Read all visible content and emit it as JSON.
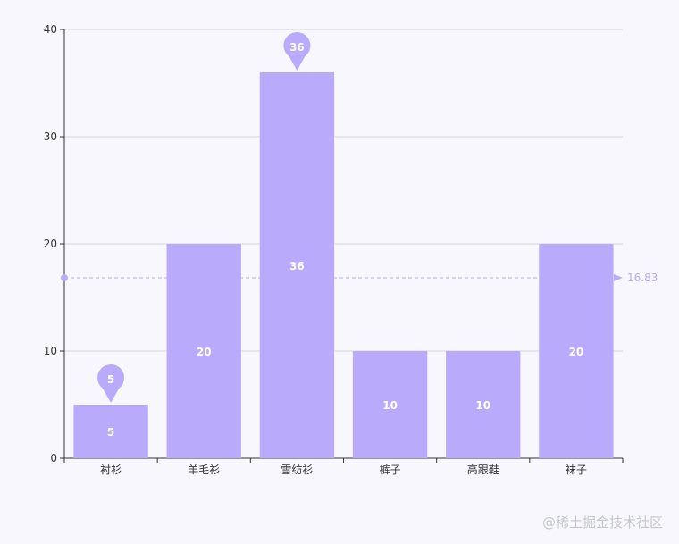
{
  "chart_data": {
    "type": "bar",
    "categories": [
      "衬衫",
      "羊毛衫",
      "雪纺衫",
      "裤子",
      "高跟鞋",
      "袜子"
    ],
    "values": [
      5,
      20,
      36,
      10,
      10,
      20
    ],
    "ylim": [
      0,
      40
    ],
    "yticks": [
      0,
      10,
      20,
      30,
      40
    ],
    "grid": true,
    "bar_labels": [
      "5",
      "20",
      "36",
      "10",
      "10",
      "20"
    ],
    "mark_points": [
      {
        "category": "雪纺衫",
        "value": 36,
        "label": "36"
      },
      {
        "category": "衬衫",
        "value": 5,
        "label": "5"
      }
    ],
    "mark_line": {
      "type": "average",
      "value": 16.83,
      "label": "16.83"
    },
    "colors": {
      "bar": "#b9aafc",
      "marker": "#b9aafc",
      "axis": "#333333",
      "grid": "#cccccc",
      "label": "#ffffff"
    }
  },
  "watermark": "@稀土掘金技术社区"
}
